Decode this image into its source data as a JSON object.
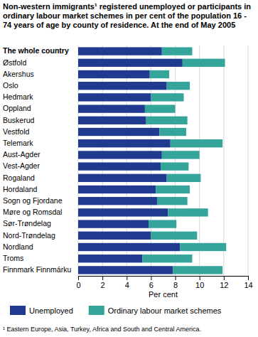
{
  "chart_data": {
    "type": "bar",
    "orientation": "horizontal",
    "stacked": true,
    "grid": true,
    "title": "Non-western immigrants¹ registered unemployed or participants in ordinary labour market schemes in per cent of the population 16 - 74 years of age by county of residence. At the end of May 2005",
    "x_label": "Per cent",
    "annotations": [
      "¹ Eastern Europe, Asia, Turkey, Africa and South and Central America."
    ],
    "legend": "bottom",
    "categories": [
      "The whole country",
      "Østfold",
      "Akershus",
      "Oslo",
      "Hedmark",
      "Oppland",
      "Buskerud",
      "Vestfold",
      "Telemark",
      "Aust-Agder",
      "Vest-Agder",
      "Rogaland",
      "Hordaland",
      "Sogn og Fjordane",
      "Møre og Romsdal",
      "Sør-Trøndelag",
      "Nord-Trøndelag",
      "Nordland",
      "Troms",
      "Finnmark Finnmárku"
    ],
    "series": [
      {
        "name": "Unemployed",
        "color": "#1f3a8f",
        "values": [
          6.9,
          8.6,
          5.9,
          7.3,
          6.0,
          5.5,
          5.6,
          6.7,
          7.6,
          6.9,
          6.8,
          7.3,
          6.4,
          6.5,
          7.4,
          5.8,
          6.0,
          8.4,
          5.3,
          7.8
        ]
      },
      {
        "name": "Ordinary labour market schemes",
        "color": "#35a59b",
        "values": [
          2.5,
          3.5,
          1.6,
          1.9,
          2.7,
          2.5,
          3.4,
          2.2,
          4.3,
          3.1,
          2.3,
          2.8,
          2.8,
          2.5,
          3.3,
          2.3,
          3.8,
          3.8,
          4.1,
          4.1
        ]
      }
    ],
    "xlim": [
      0,
      14
    ],
    "xticks": [
      0,
      2,
      4,
      6,
      8,
      10,
      12,
      14
    ]
  }
}
